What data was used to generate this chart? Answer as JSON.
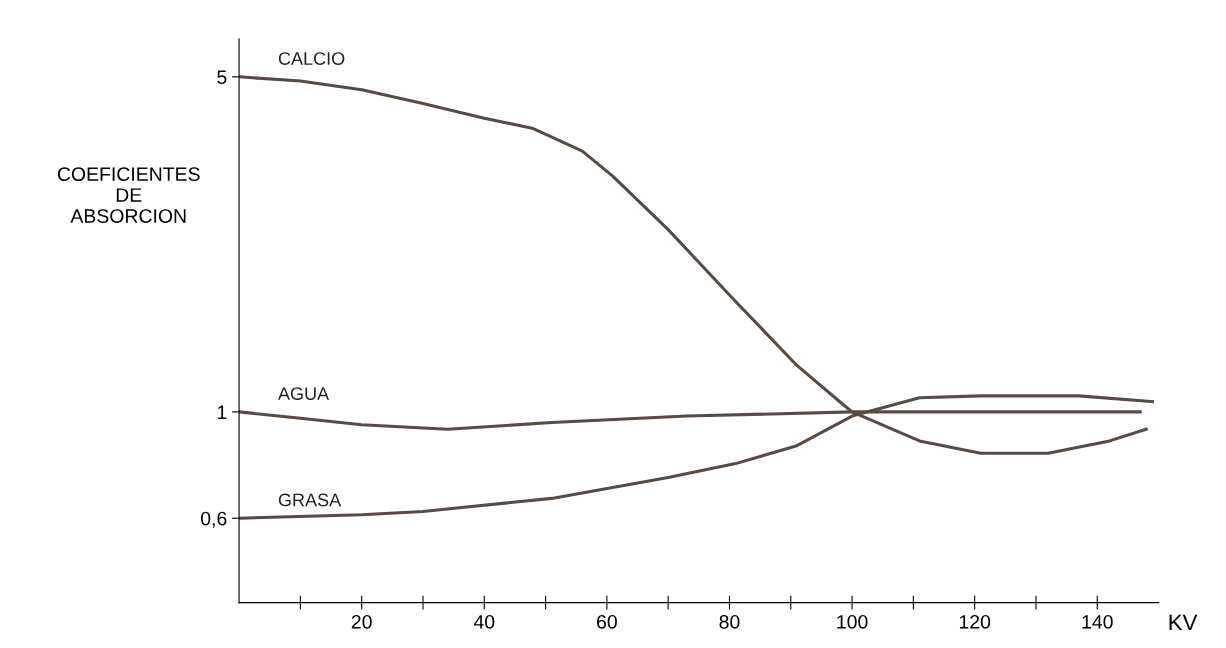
{
  "chart_data": {
    "type": "line",
    "xlabel": "KV",
    "ylabel": "COEFICIENTES\nDE\nABSORCION",
    "log": "y",
    "grid": false,
    "legend": false,
    "marker": "none",
    "line_style": "solid",
    "xlim": [
      0,
      150
    ],
    "ylim": [
      0.4,
      6
    ],
    "xticks": [
      {
        "value": 10,
        "label": null
      },
      20,
      {
        "value": 30,
        "label": null
      },
      40,
      {
        "value": 50,
        "label": null
      },
      60,
      {
        "value": 70,
        "label": null
      },
      80,
      {
        "value": 90,
        "label": null
      },
      100,
      {
        "value": 110,
        "label": null
      },
      120,
      {
        "value": 130,
        "label": null
      },
      140
    ],
    "yticks": [
      {
        "value": 0.6,
        "label": "0,6"
      },
      1,
      5
    ],
    "series": [
      {
        "name": "CALCIO",
        "color": "#5a4a44",
        "x": [
          0,
          10,
          20,
          30,
          40,
          48,
          56,
          61,
          70,
          81,
          91,
          98,
          100,
          111,
          121,
          132,
          142,
          148
        ],
        "values": [
          5,
          4.9,
          4.7,
          4.4,
          4.1,
          3.9,
          3.5,
          3.1,
          2.4,
          1.7,
          1.25,
          1.05,
          1.0,
          0.87,
          0.82,
          0.82,
          0.87,
          0.92
        ]
      },
      {
        "name": "AGUA",
        "color": "#5a4a44",
        "x": [
          0,
          10,
          20,
          34,
          51,
          73,
          100,
          121,
          147
        ],
        "values": [
          1,
          0.97,
          0.94,
          0.92,
          0.95,
          0.98,
          1,
          1,
          1
        ]
      },
      {
        "name": "GRASA",
        "color": "#5a4a44",
        "x": [
          0,
          20,
          30,
          51,
          70,
          81,
          91,
          100,
          111,
          121,
          137,
          149
        ],
        "values": [
          0.6,
          0.61,
          0.62,
          0.66,
          0.73,
          0.78,
          0.85,
          0.98,
          1.07,
          1.08,
          1.08,
          1.05
        ]
      }
    ]
  }
}
